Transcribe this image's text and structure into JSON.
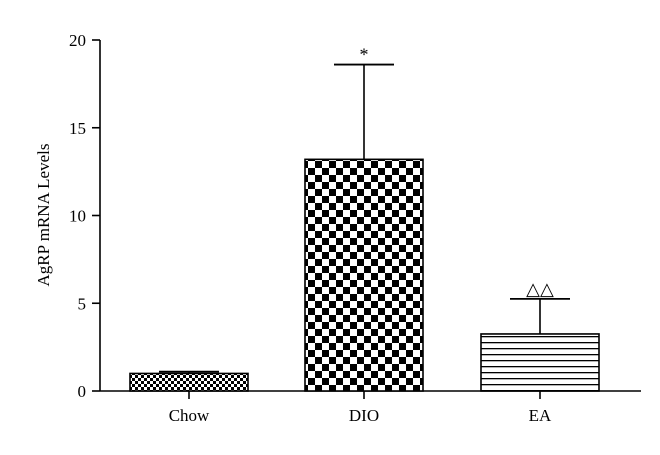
{
  "chart_data": {
    "type": "bar",
    "title": "",
    "xlabel": "",
    "ylabel": "AgRP mRNA Levels",
    "ylim": [
      0,
      20
    ],
    "yticks": [
      0,
      5,
      10,
      15,
      20
    ],
    "categories": [
      "Chow",
      "DIO",
      "EA"
    ],
    "values": [
      1.0,
      13.2,
      3.25
    ],
    "errors": [
      0.1,
      5.4,
      2.0
    ],
    "patterns": [
      "fine-checker",
      "checker",
      "horizontal-lines"
    ],
    "annotations": [
      "",
      "*",
      "△△"
    ],
    "grid": false,
    "legend": "none"
  }
}
